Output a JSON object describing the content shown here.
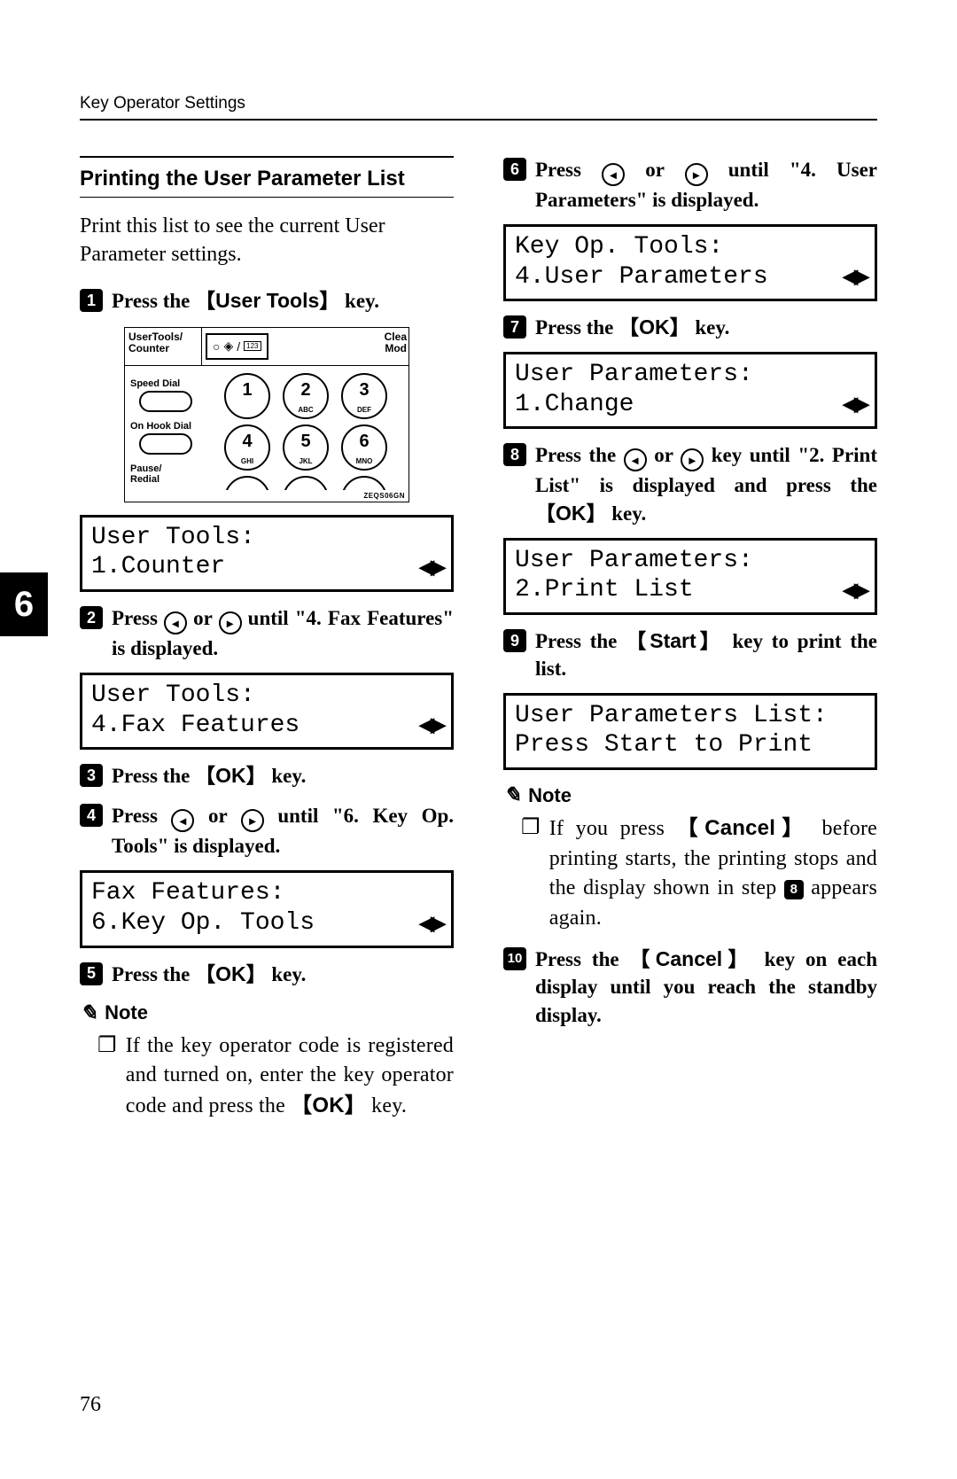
{
  "header": "Key Operator Settings",
  "chapter_tab": "6",
  "page_number": "76",
  "section_title": "Printing the User Parameter List",
  "intro": "Print this list to see the current User Parameter settings.",
  "steps": {
    "s1_pre": "Press the ",
    "s1_key": "User Tools",
    "s1_post": " key.",
    "s2_pre": "Press ",
    "s2_mid": " or ",
    "s2_post": " until \"4. Fax Features\" is displayed.",
    "s3_pre": "Press the ",
    "s3_key": "OK",
    "s3_post": " key.",
    "s4_pre": "Press ",
    "s4_mid": " or ",
    "s4_post": " until \"6. Key Op. Tools\" is displayed.",
    "s5_pre": "Press the ",
    "s5_key": "OK",
    "s5_post": " key.",
    "s6_pre": "Press ",
    "s6_mid": " or ",
    "s6_post": " until \"4. User Parameters\" is displayed.",
    "s7_pre": "Press the ",
    "s7_key": "OK",
    "s7_post": " key.",
    "s8_pre": "Press the ",
    "s8_mid": " or ",
    "s8_post1": " key until \"2. Print List\" is displayed and press the ",
    "s8_key": "OK",
    "s8_post2": " key.",
    "s9_pre": "Press the ",
    "s9_key": "Start",
    "s9_post": " key to print the list.",
    "s10_pre": "Press the ",
    "s10_key": "Cancel",
    "s10_post": " key on each display until you reach the standby display."
  },
  "notes": {
    "label": "Note",
    "left_a": "If the key operator code is registered and turned on, enter the key operator code and press the ",
    "left_key": "OK",
    "left_b": " key.",
    "right_a": "If you press ",
    "right_key": "Cancel",
    "right_b": " before printing starts, the printing stops and the display shown in step ",
    "right_step": "8",
    "right_c": " appears again."
  },
  "lcds": {
    "l1a": "User Tools:",
    "l1b": "1.Counter",
    "l2a": "User Tools:",
    "l2b": "4.Fax Features",
    "l3a": "Fax Features:",
    "l3b": "6.Key Op. Tools",
    "r1a": "Key Op. Tools:",
    "r1b": "4.User Parameters",
    "r2a": "User Parameters:",
    "r2b": "1.Change",
    "r3a": "User Parameters:",
    "r3b": "2.Print List",
    "r4a": "User Parameters List:",
    "r4b": "Press Start to Print"
  },
  "panel": {
    "ut1": "UserTools/",
    "ut2": "Counter",
    "clea1": "Clea",
    "clea2": "Mod",
    "speed": "Speed Dial",
    "hook": "On Hook Dial",
    "pause": "Pause/",
    "redial": "Redial",
    "code": "ZEQS06GN",
    "k1": "1",
    "k1s": "",
    "k2": "2",
    "k2s": "ABC",
    "k3": "3",
    "k3s": "DEF",
    "k4": "4",
    "k4s": "GHI",
    "k5": "5",
    "k5s": "JKL",
    "k6": "6",
    "k6s": "MNO"
  }
}
